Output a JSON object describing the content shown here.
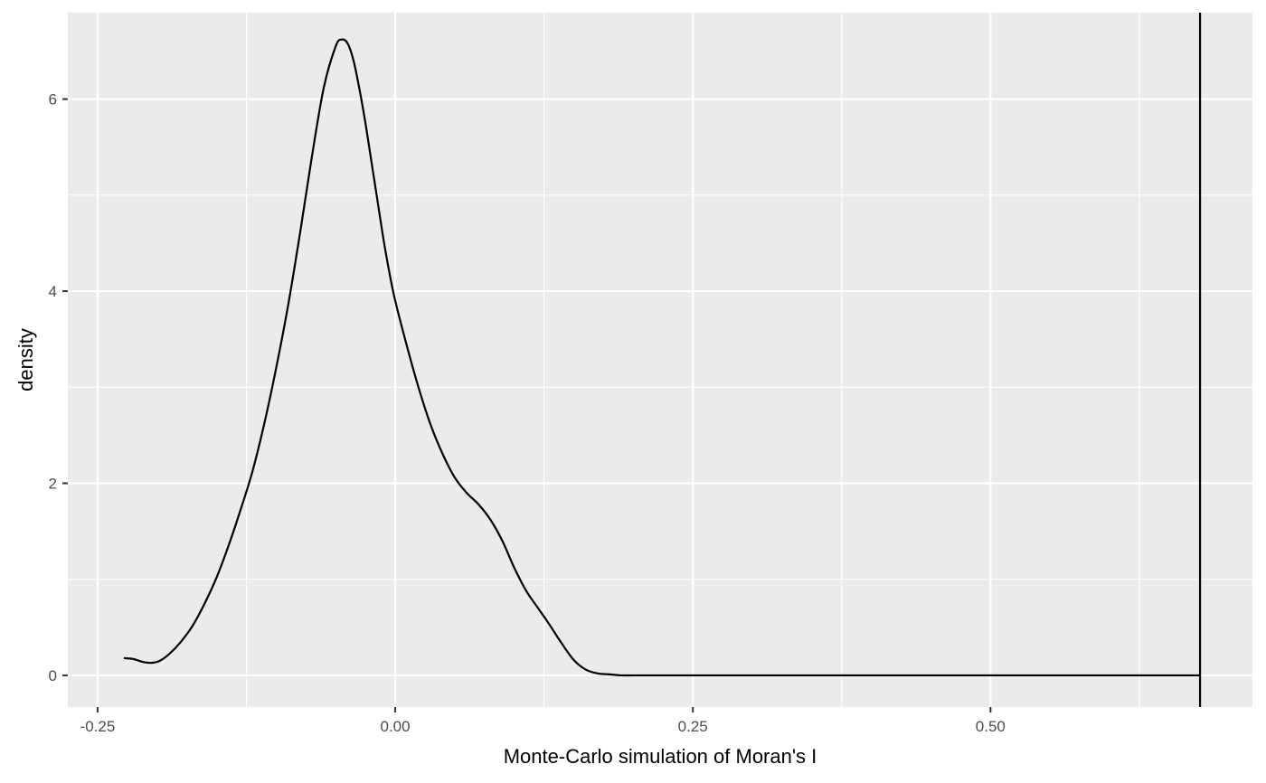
{
  "chart_data": {
    "type": "line",
    "title": "",
    "xlabel": "Monte-Carlo simulation of Moran's I",
    "ylabel": "density",
    "xlim": [
      -0.275,
      0.72
    ],
    "ylim": [
      -0.33,
      6.9
    ],
    "x_ticks": [
      -0.25,
      0.0,
      0.25,
      0.5
    ],
    "x_tick_labels": [
      "-0.25",
      "0.00",
      "0.25",
      "0.50"
    ],
    "y_ticks": [
      0,
      2,
      4,
      6
    ],
    "y_tick_labels": [
      "0",
      "2",
      "4",
      "6"
    ],
    "grid": true,
    "background": "#ebebeb",
    "grid_color": "#ffffff",
    "line_color": "#000000",
    "series": [
      {
        "x": [
          -0.228,
          -0.22,
          -0.212,
          -0.205,
          -0.198,
          -0.19,
          -0.18,
          -0.17,
          -0.16,
          -0.15,
          -0.14,
          -0.13,
          -0.12,
          -0.11,
          -0.1,
          -0.09,
          -0.08,
          -0.07,
          -0.06,
          -0.05,
          -0.045,
          -0.04,
          -0.035,
          -0.03,
          -0.025,
          -0.02,
          -0.015,
          -0.01,
          -0.005,
          0.0,
          0.01,
          0.02,
          0.03,
          0.04,
          0.05,
          0.06,
          0.07,
          0.08,
          0.09,
          0.1,
          0.11,
          0.12,
          0.13,
          0.14,
          0.15,
          0.16,
          0.17,
          0.18,
          0.19,
          0.2,
          0.21,
          0.22,
          0.23,
          0.25,
          0.3,
          0.4,
          0.5,
          0.6,
          0.676
        ],
        "y": [
          0.18,
          0.17,
          0.14,
          0.13,
          0.15,
          0.22,
          0.35,
          0.52,
          0.75,
          1.02,
          1.35,
          1.72,
          2.12,
          2.62,
          3.2,
          3.85,
          4.6,
          5.4,
          6.12,
          6.55,
          6.62,
          6.58,
          6.4,
          6.1,
          5.75,
          5.35,
          4.95,
          4.55,
          4.2,
          3.9,
          3.42,
          2.98,
          2.6,
          2.3,
          2.06,
          1.9,
          1.78,
          1.62,
          1.4,
          1.12,
          0.88,
          0.7,
          0.52,
          0.33,
          0.16,
          0.06,
          0.02,
          0.01,
          0.0,
          0.0,
          0.0,
          0.0,
          0.0,
          0.0,
          0.0,
          0.0,
          0.0,
          0.0,
          0.0
        ]
      }
    ],
    "vline": {
      "x": 0.676,
      "color": "#000000"
    }
  }
}
